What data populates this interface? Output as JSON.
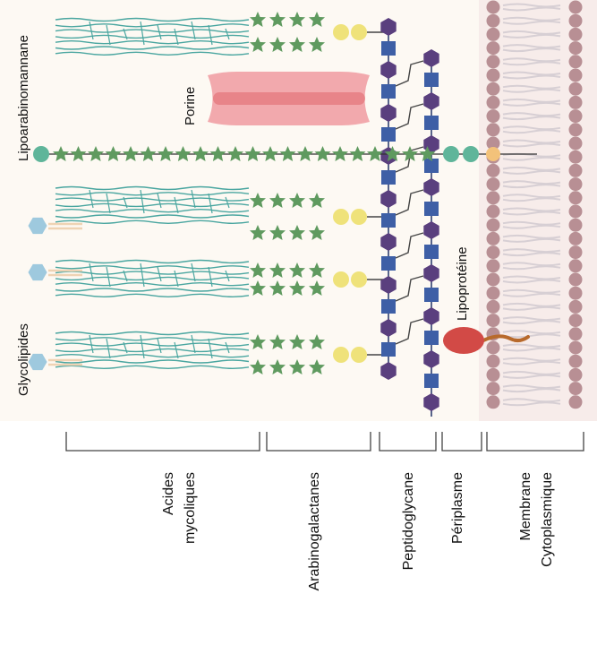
{
  "labels": {
    "lipoarabinomannane": "Lipoarabinomannane",
    "porine": "Porine",
    "lipoproteine": "Lipoprotéine",
    "glycolipides": "Glycolipides"
  },
  "regions": [
    {
      "id": "acides-mycoliques",
      "lines": [
        "Acides",
        "mycoliques"
      ]
    },
    {
      "id": "arabinogalactanes",
      "lines": [
        "Arabinogalactanes"
      ]
    },
    {
      "id": "peptidoglycane",
      "lines": [
        "Peptidoglycane"
      ]
    },
    {
      "id": "periplasme",
      "lines": [
        "Périplasme"
      ]
    },
    {
      "id": "membrane-cytoplasmique",
      "lines": [
        "Membrane",
        "Cytoplasmique"
      ]
    }
  ],
  "colors": {
    "background": "#fdf9f3",
    "membrane_band": "#f7ecea",
    "lipid_head": "#b88f94",
    "lipid_tail": "#d7cfd4",
    "mycolic_chain": "#4aa6a0",
    "arabinose_star": "#5f9a5f",
    "galactose": "#efe27a",
    "peptidoglycan_square": "#3e5fa6",
    "peptidoglycan_hex": "#5a3f7e",
    "glycolipid_head": "#9ec9de",
    "lam_anchor": "#5fb59a",
    "lam_membrane_head": "#f3c27a",
    "porin": "#f2a9ad",
    "porin_stripe": "#e57a80",
    "lipoprotein": "#d24a46",
    "lipoprotein_tail": "#b86a2c"
  }
}
